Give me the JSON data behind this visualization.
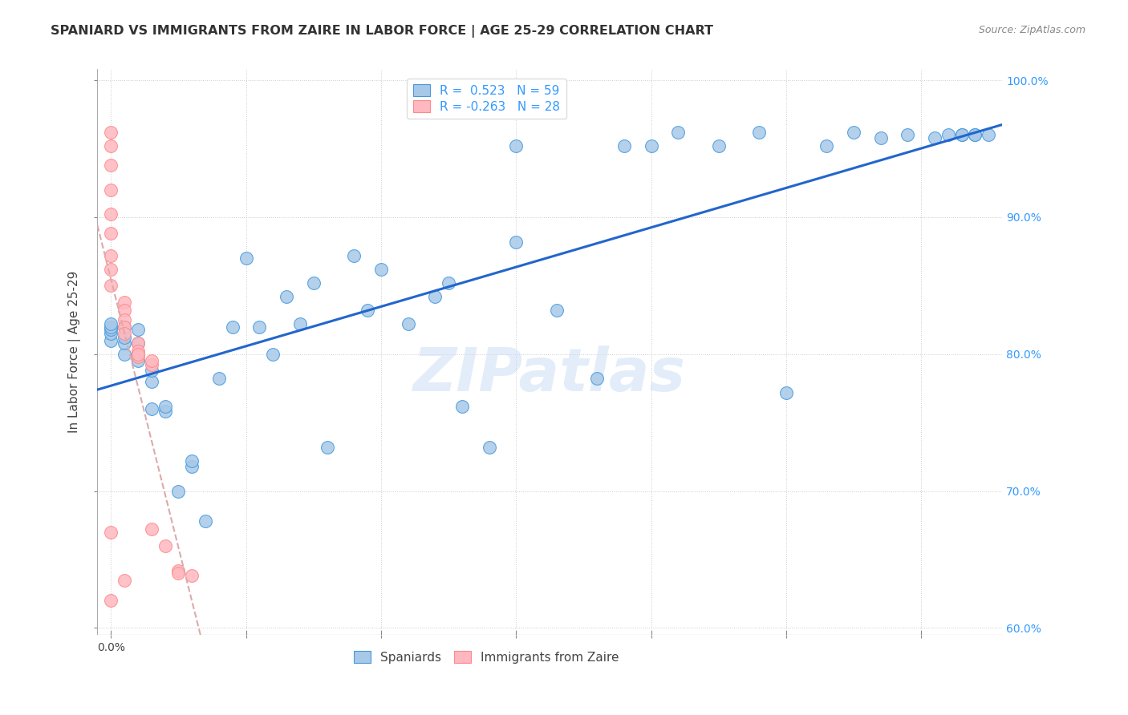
{
  "title": "SPANIARD VS IMMIGRANTS FROM ZAIRE IN LABOR FORCE | AGE 25-29 CORRELATION CHART",
  "source": "Source: ZipAtlas.com",
  "ylabel": "In Labor Force | Age 25-29",
  "legend_labels": [
    "Spaniards",
    "Immigrants from Zaire"
  ],
  "R_blue": 0.523,
  "N_blue": 59,
  "R_pink": -0.263,
  "N_pink": 28,
  "blue_color": "#a8c8e8",
  "blue_edge": "#4499dd",
  "pink_color": "#ffb8c0",
  "pink_edge": "#ff8888",
  "line_blue": "#2266cc",
  "line_pink": "#ee6677",
  "line_pink_dash": "#ddaaaa",
  "watermark": "ZIPatlas",
  "xmin": -0.001,
  "xmax": 0.066,
  "ymin": 0.595,
  "ymax": 1.008,
  "yticks": [
    0.6,
    0.7,
    0.8,
    0.9,
    1.0
  ],
  "ytick_labels": [
    "60.0%",
    "70.0%",
    "80.0%",
    "90.0%",
    "100.0%"
  ],
  "xtick_positions": [
    0.0,
    0.01,
    0.02,
    0.03,
    0.04,
    0.05,
    0.06
  ],
  "blue_x": [
    0.0,
    0.0,
    0.0,
    0.0,
    0.0,
    0.001,
    0.001,
    0.001,
    0.001,
    0.002,
    0.002,
    0.002,
    0.003,
    0.003,
    0.003,
    0.004,
    0.004,
    0.005,
    0.006,
    0.006,
    0.007,
    0.008,
    0.009,
    0.01,
    0.011,
    0.012,
    0.013,
    0.014,
    0.015,
    0.016,
    0.018,
    0.019,
    0.02,
    0.022,
    0.024,
    0.025,
    0.026,
    0.028,
    0.03,
    0.03,
    0.033,
    0.036,
    0.038,
    0.04,
    0.042,
    0.045,
    0.048,
    0.05,
    0.053,
    0.055,
    0.057,
    0.059,
    0.061,
    0.062,
    0.063,
    0.063,
    0.064,
    0.064,
    0.065
  ],
  "blue_y": [
    0.81,
    0.815,
    0.818,
    0.82,
    0.822,
    0.8,
    0.808,
    0.812,
    0.82,
    0.795,
    0.808,
    0.818,
    0.76,
    0.78,
    0.788,
    0.758,
    0.762,
    0.7,
    0.718,
    0.722,
    0.678,
    0.782,
    0.82,
    0.87,
    0.82,
    0.8,
    0.842,
    0.822,
    0.852,
    0.732,
    0.872,
    0.832,
    0.862,
    0.822,
    0.842,
    0.852,
    0.762,
    0.732,
    0.882,
    0.952,
    0.832,
    0.782,
    0.952,
    0.952,
    0.962,
    0.952,
    0.962,
    0.772,
    0.952,
    0.962,
    0.958,
    0.96,
    0.958,
    0.96,
    0.96,
    0.96,
    0.96,
    0.96,
    0.96
  ],
  "pink_x": [
    0.0,
    0.0,
    0.0,
    0.0,
    0.0,
    0.0,
    0.0,
    0.0,
    0.0,
    0.001,
    0.001,
    0.001,
    0.001,
    0.001,
    0.002,
    0.002,
    0.002,
    0.003,
    0.003,
    0.005,
    0.006
  ],
  "pink_y": [
    0.962,
    0.952,
    0.938,
    0.92,
    0.902,
    0.888,
    0.872,
    0.862,
    0.85,
    0.838,
    0.832,
    0.825,
    0.82,
    0.815,
    0.808,
    0.802,
    0.798,
    0.792,
    0.672,
    0.642,
    0.638
  ],
  "pink_x2": [
    0.0,
    0.0,
    0.001,
    0.002,
    0.003,
    0.004,
    0.005
  ],
  "pink_y2": [
    0.67,
    0.62,
    0.635,
    0.8,
    0.795,
    0.66,
    0.64
  ]
}
